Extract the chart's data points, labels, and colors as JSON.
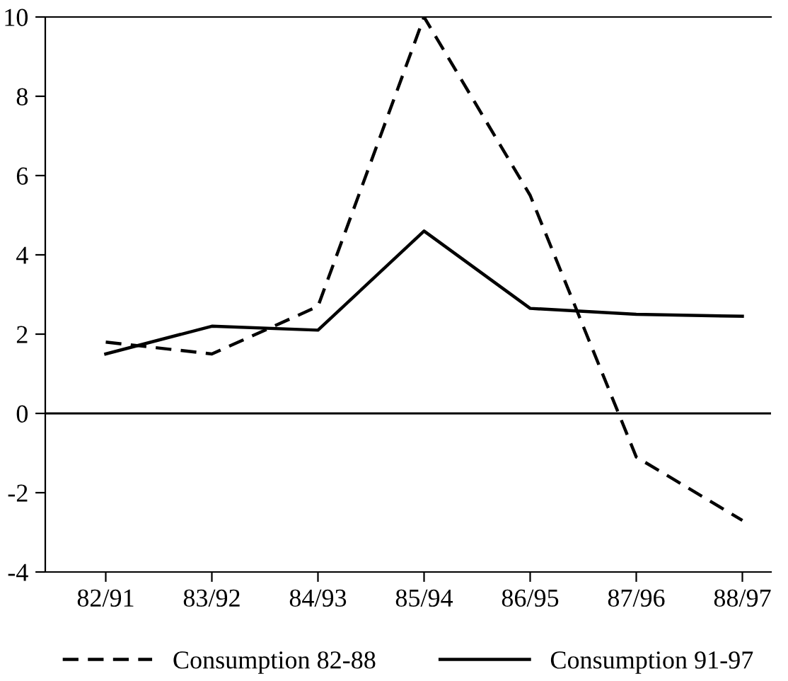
{
  "chart_data": {
    "type": "line",
    "categories": [
      "82/91",
      "83/92",
      "84/93",
      "85/94",
      "86/95",
      "87/96",
      "88/97"
    ],
    "series": [
      {
        "name": "Consumption 82-88",
        "color": "#000000",
        "line_style": "dashed",
        "values": [
          1.8,
          1.5,
          2.7,
          10,
          5.5,
          -1.1,
          -2.7
        ]
      },
      {
        "name": "Consumption 91-97",
        "color": "#000000",
        "line_style": "solid",
        "values": [
          1.5,
          2.2,
          2.1,
          4.6,
          2.65,
          2.5,
          2.45
        ]
      }
    ],
    "ylim": [
      -4,
      10
    ],
    "yticks": [
      -4,
      -2,
      0,
      2,
      4,
      6,
      8,
      10
    ],
    "ref_lines": [
      {
        "axis": "y",
        "value": 0,
        "color": "#000000"
      }
    ],
    "grid": false,
    "legend": "bottom"
  }
}
